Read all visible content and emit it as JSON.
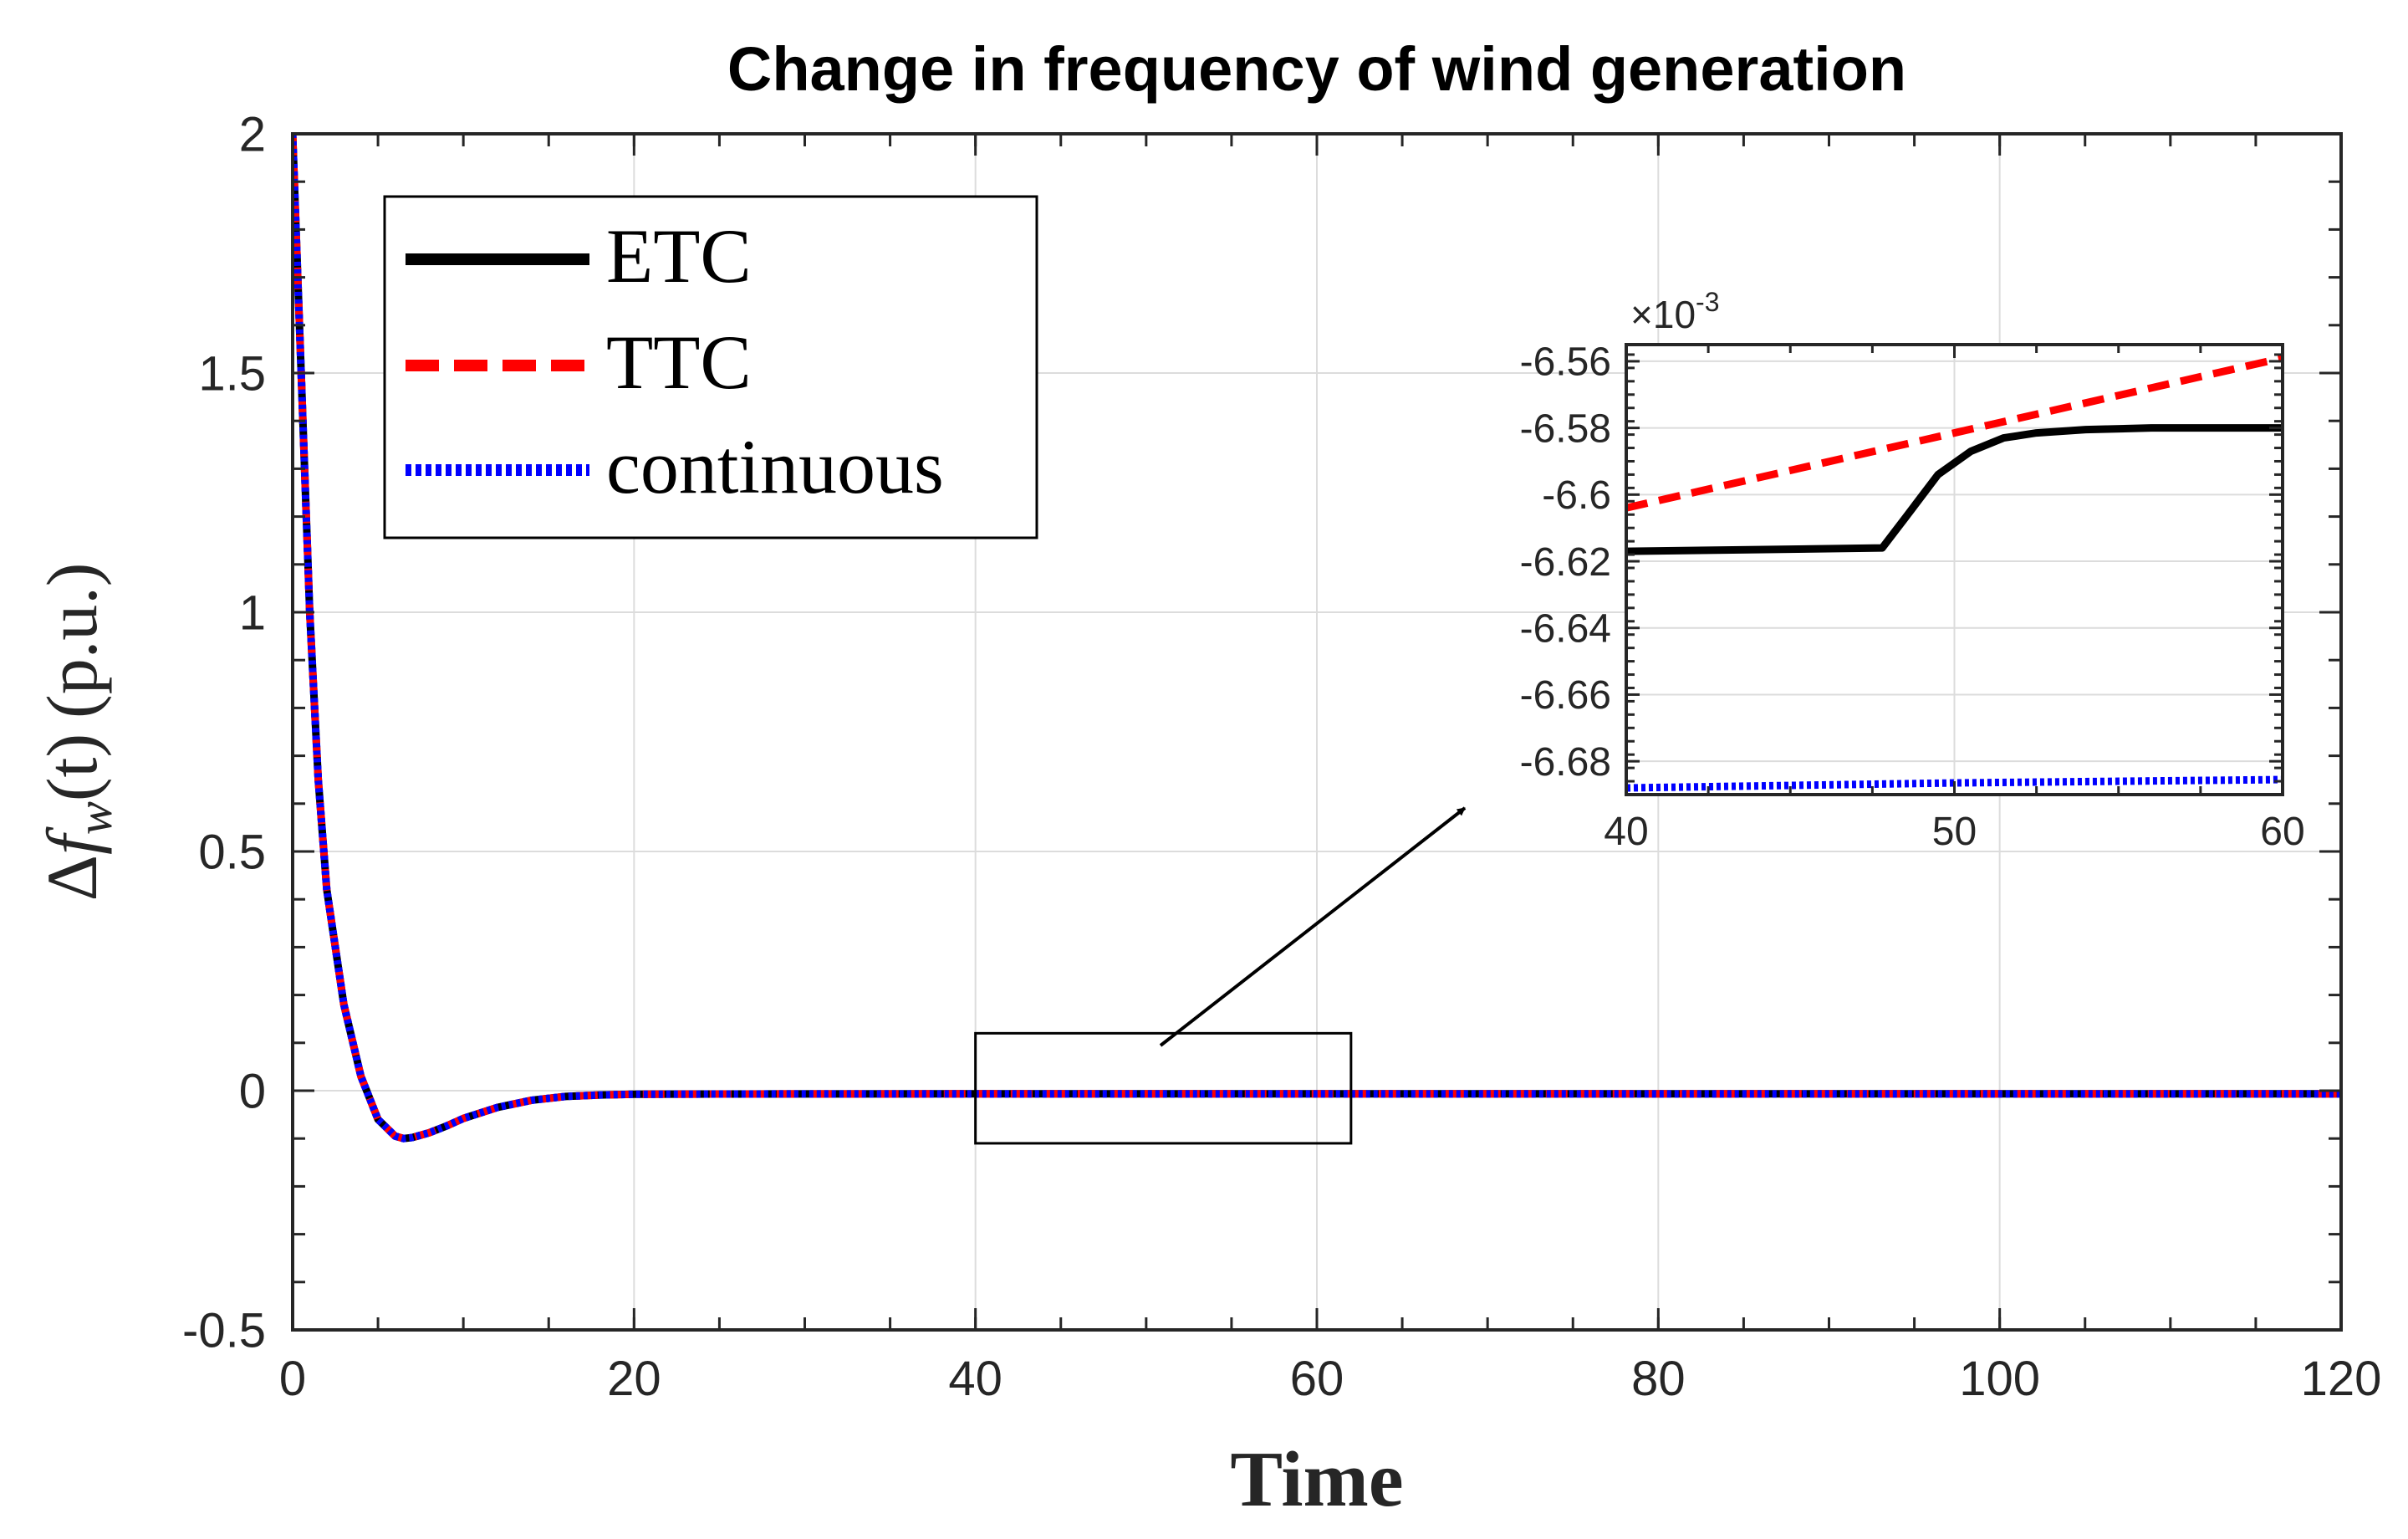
{
  "chart_data": [
    {
      "type": "line",
      "title": "Change in frequency of wind generation",
      "xlabel": "Time",
      "ylabel": "Δf_w(t) (p.u.)",
      "ylabel_parts": {
        "delta": "Δ",
        "f": "f",
        "sub": "w",
        "arg": "(t)",
        "unit": "(p.u.)"
      },
      "xlim": [
        0,
        120
      ],
      "ylim": [
        -0.5,
        2
      ],
      "xticks": [
        0,
        20,
        40,
        60,
        80,
        100,
        120
      ],
      "xtick_labels": [
        "0",
        "20",
        "40",
        "60",
        "80",
        "100",
        "120"
      ],
      "yticks": [
        -0.5,
        0,
        0.5,
        1,
        1.5,
        2
      ],
      "ytick_labels": [
        "-0.5",
        "0",
        "0.5",
        "1",
        "1.5",
        "2"
      ],
      "grid": true,
      "legend": {
        "position": "top-left",
        "entries": [
          "ETC",
          "TTC",
          "continuous"
        ]
      },
      "series": [
        {
          "name": "ETC",
          "color": "#000000",
          "style": "solid",
          "x": [
            0,
            0.5,
            1,
            1.5,
            2,
            3,
            4,
            5,
            6,
            6.5,
            7,
            8,
            9,
            10,
            12,
            14,
            16,
            18,
            20,
            25,
            30,
            40,
            60,
            80,
            100,
            120
          ],
          "y": [
            2.0,
            1.5,
            1.0,
            0.65,
            0.42,
            0.18,
            0.03,
            -0.06,
            -0.095,
            -0.1,
            -0.098,
            -0.088,
            -0.074,
            -0.058,
            -0.035,
            -0.02,
            -0.012,
            -0.009,
            -0.0075,
            -0.007,
            -0.0068,
            -0.0066,
            -0.0066,
            -0.0066,
            -0.0066,
            -0.0066
          ]
        },
        {
          "name": "TTC",
          "color": "#ff0000",
          "style": "dashed",
          "x": [
            0,
            0.5,
            1,
            1.5,
            2,
            3,
            4,
            5,
            6,
            6.5,
            7,
            8,
            9,
            10,
            12,
            14,
            16,
            18,
            20,
            25,
            30,
            40,
            60,
            80,
            100,
            120
          ],
          "y": [
            2.0,
            1.5,
            1.0,
            0.65,
            0.42,
            0.18,
            0.03,
            -0.06,
            -0.095,
            -0.1,
            -0.098,
            -0.088,
            -0.074,
            -0.058,
            -0.035,
            -0.02,
            -0.012,
            -0.009,
            -0.0075,
            -0.007,
            -0.0068,
            -0.0066,
            -0.0066,
            -0.0066,
            -0.0066,
            -0.0066
          ]
        },
        {
          "name": "continuous",
          "color": "#0000ff",
          "style": "dotted",
          "x": [
            0,
            0.5,
            1,
            1.5,
            2,
            3,
            4,
            5,
            6,
            6.5,
            7,
            8,
            9,
            10,
            12,
            14,
            16,
            18,
            20,
            25,
            30,
            40,
            60,
            80,
            100,
            120
          ],
          "y": [
            2.0,
            1.5,
            1.0,
            0.65,
            0.42,
            0.18,
            0.03,
            -0.06,
            -0.095,
            -0.1,
            -0.098,
            -0.088,
            -0.074,
            -0.058,
            -0.035,
            -0.02,
            -0.012,
            -0.009,
            -0.0075,
            -0.007,
            -0.0068,
            -0.0067,
            -0.0067,
            -0.0067,
            -0.0067,
            -0.0067
          ]
        }
      ],
      "zoom_region": {
        "x": [
          40,
          62
        ],
        "y": [
          -0.11,
          0.12
        ]
      }
    },
    {
      "type": "line",
      "title": "",
      "xlim": [
        40,
        60
      ],
      "ylim": [
        -6.69,
        -6.555
      ],
      "xticks": [
        40,
        50,
        60
      ],
      "xtick_labels": [
        "40",
        "50",
        "60"
      ],
      "yticks": [
        -6.68,
        -6.66,
        -6.64,
        -6.62,
        -6.6,
        -6.58,
        -6.56
      ],
      "ytick_labels": [
        "-6.68",
        "-6.66",
        "-6.64",
        "-6.62",
        "-6.6",
        "-6.58",
        "-6.56"
      ],
      "y_exponent_label": {
        "prefix": "×10",
        "power": "-3"
      },
      "grid": true,
      "series": [
        {
          "name": "ETC",
          "color": "#000000",
          "style": "solid",
          "x": [
            40,
            44,
            47.8,
            48.5,
            49.5,
            50.5,
            51.5,
            52.5,
            54,
            56,
            58,
            60
          ],
          "y": [
            -6.617,
            -6.6165,
            -6.616,
            -6.607,
            -6.594,
            -6.587,
            -6.583,
            -6.5815,
            -6.5805,
            -6.58,
            -6.58,
            -6.58
          ]
        },
        {
          "name": "TTC",
          "color": "#ff0000",
          "style": "dashed",
          "x": [
            40,
            60
          ],
          "y": [
            -6.604,
            -6.559
          ]
        },
        {
          "name": "continuous",
          "color": "#0000ff",
          "style": "dotted",
          "x": [
            40,
            50,
            60
          ],
          "y": [
            -6.688,
            -6.6865,
            -6.6855
          ]
        }
      ]
    }
  ]
}
